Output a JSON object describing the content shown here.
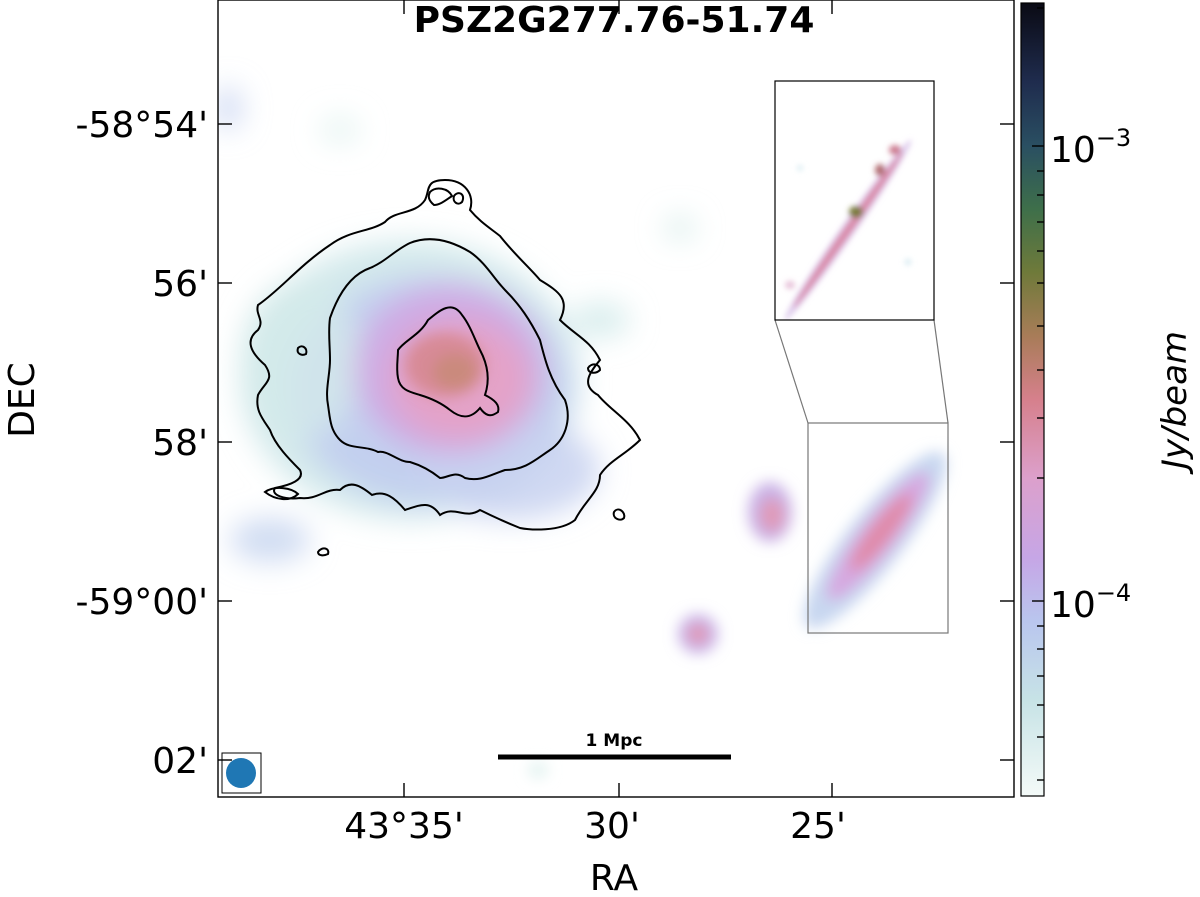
{
  "chart_data": {
    "type": "heatmap",
    "title": "PSZ2G277.76-51.74",
    "xlabel": "RA",
    "ylabel": "DEC",
    "x_tick_labels": [
      "43°35'",
      "30'",
      "25'"
    ],
    "y_tick_labels": [
      "-58°54'",
      "56'",
      "58'",
      "-59°00'",
      "02'"
    ],
    "colorbar": {
      "label": "Jy/beam",
      "scale": "log",
      "tick_labels": [
        "10",
        "10"
      ],
      "tick_exponents": [
        "−3",
        "−4"
      ],
      "colormap": "cubehelix-like (white → blue → violet → pink → brown → green → black)"
    },
    "scalebar_label": "1 Mpc",
    "beam_color": "#1f77b4",
    "grid": false,
    "contours": true,
    "inset": true
  }
}
